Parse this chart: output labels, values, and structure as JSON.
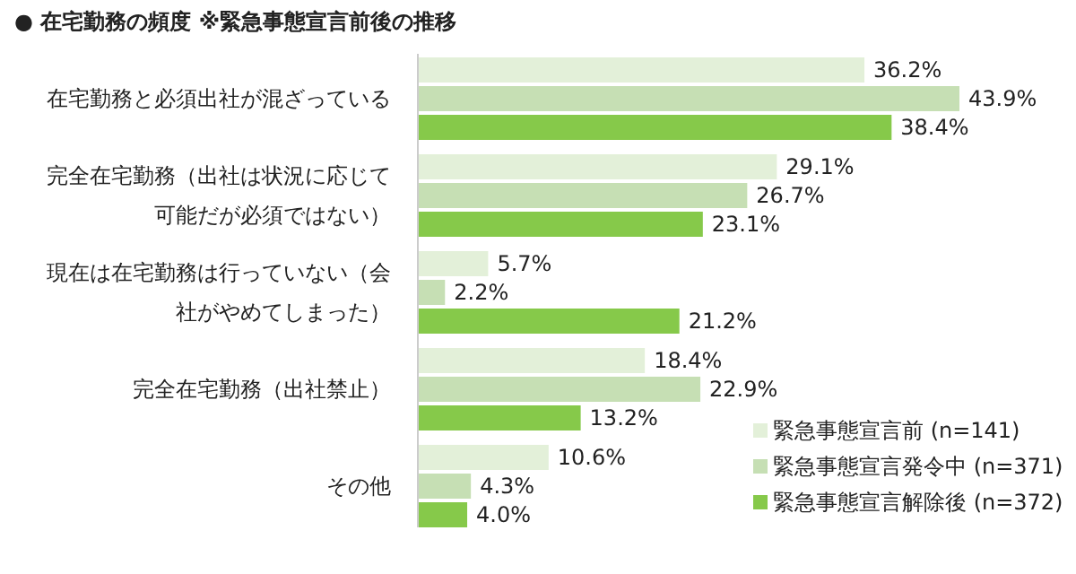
{
  "chart_data": {
    "type": "bar",
    "orientation": "horizontal",
    "title": "● 在宅勤務の頻度 ※緊急事態宣言前後の推移",
    "categories": [
      "在宅勤務と必須出社が混ざっている",
      "完全在宅勤務（出社は状況に応じて可能だが必須ではない）",
      "現在は在宅勤務は行っていない（会社がやめてしまった）",
      "完全在宅勤務（出社禁止）",
      "その他"
    ],
    "series": [
      {
        "name": "緊急事態宣言前 (n=141)",
        "color": "#e3f0d9",
        "values": [
          36.2,
          29.1,
          5.7,
          18.4,
          10.6
        ],
        "value_labels": [
          "36.2%",
          "29.1%",
          "5.7%",
          "18.4%",
          "10.6%"
        ]
      },
      {
        "name": "緊急事態宣言発令中 (n=371)",
        "color": "#c6dfb4",
        "values": [
          43.9,
          26.7,
          2.2,
          22.9,
          4.3
        ],
        "value_labels": [
          "43.9%",
          "26.7%",
          "2.2%",
          "22.9%",
          "4.3%"
        ]
      },
      {
        "name": "緊急事態宣言解除後 (n=372)",
        "color": "#86c94a",
        "values": [
          38.4,
          23.1,
          21.2,
          13.2,
          4.0
        ],
        "value_labels": [
          "38.4%",
          "23.1%",
          "21.2%",
          "13.2%",
          "4.0%"
        ]
      }
    ],
    "legend": "bottom right"
  }
}
